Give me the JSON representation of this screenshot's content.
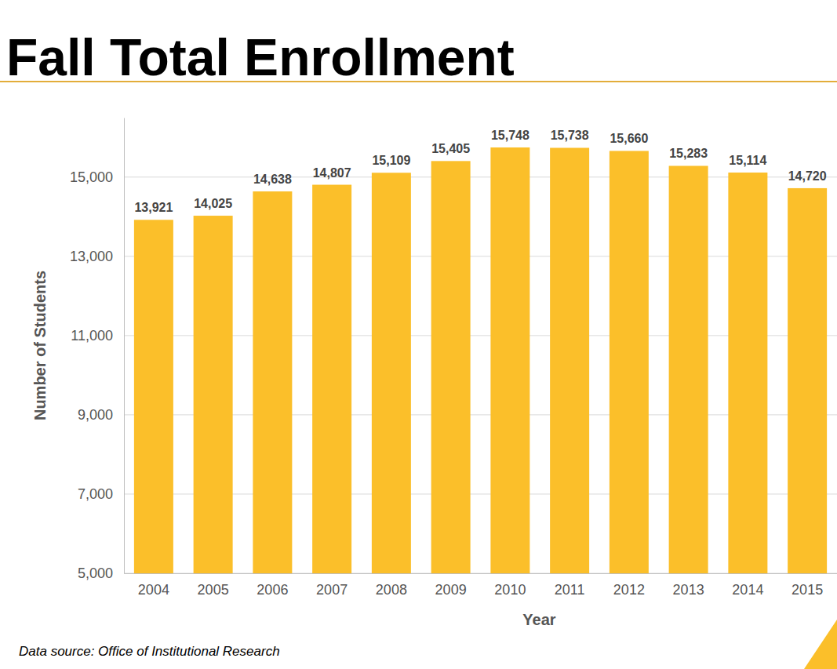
{
  "chart_data": {
    "type": "bar",
    "title": "Fall Total Enrollment",
    "x_label": "Year",
    "y_label": "Number of Students",
    "source": "Data source: Office of Institutional Research",
    "categories": [
      "2004",
      "2005",
      "2006",
      "2007",
      "2008",
      "2009",
      "2010",
      "2011",
      "2012",
      "2013",
      "2014",
      "2015"
    ],
    "values": [
      13921,
      14025,
      14638,
      14807,
      15109,
      15405,
      15748,
      15738,
      15660,
      15283,
      15114,
      14720
    ],
    "value_labels": [
      "13,921",
      "14,025",
      "14,638",
      "14,807",
      "15,109",
      "15,405",
      "15,748",
      "15,738",
      "15,660",
      "15,283",
      "15,114",
      "14,720"
    ],
    "color": "#fbbf2a",
    "ylim": [
      5000,
      16500
    ],
    "yticks": [
      {
        "value": 5000,
        "label": "5,000"
      },
      {
        "value": 7000,
        "label": "7,000"
      },
      {
        "value": 9000,
        "label": "9,000"
      },
      {
        "value": 11000,
        "label": "11,000"
      },
      {
        "value": 13000,
        "label": "13,000"
      },
      {
        "value": 15000,
        "label": "15,000"
      }
    ],
    "grid": true,
    "data_labels": true
  }
}
